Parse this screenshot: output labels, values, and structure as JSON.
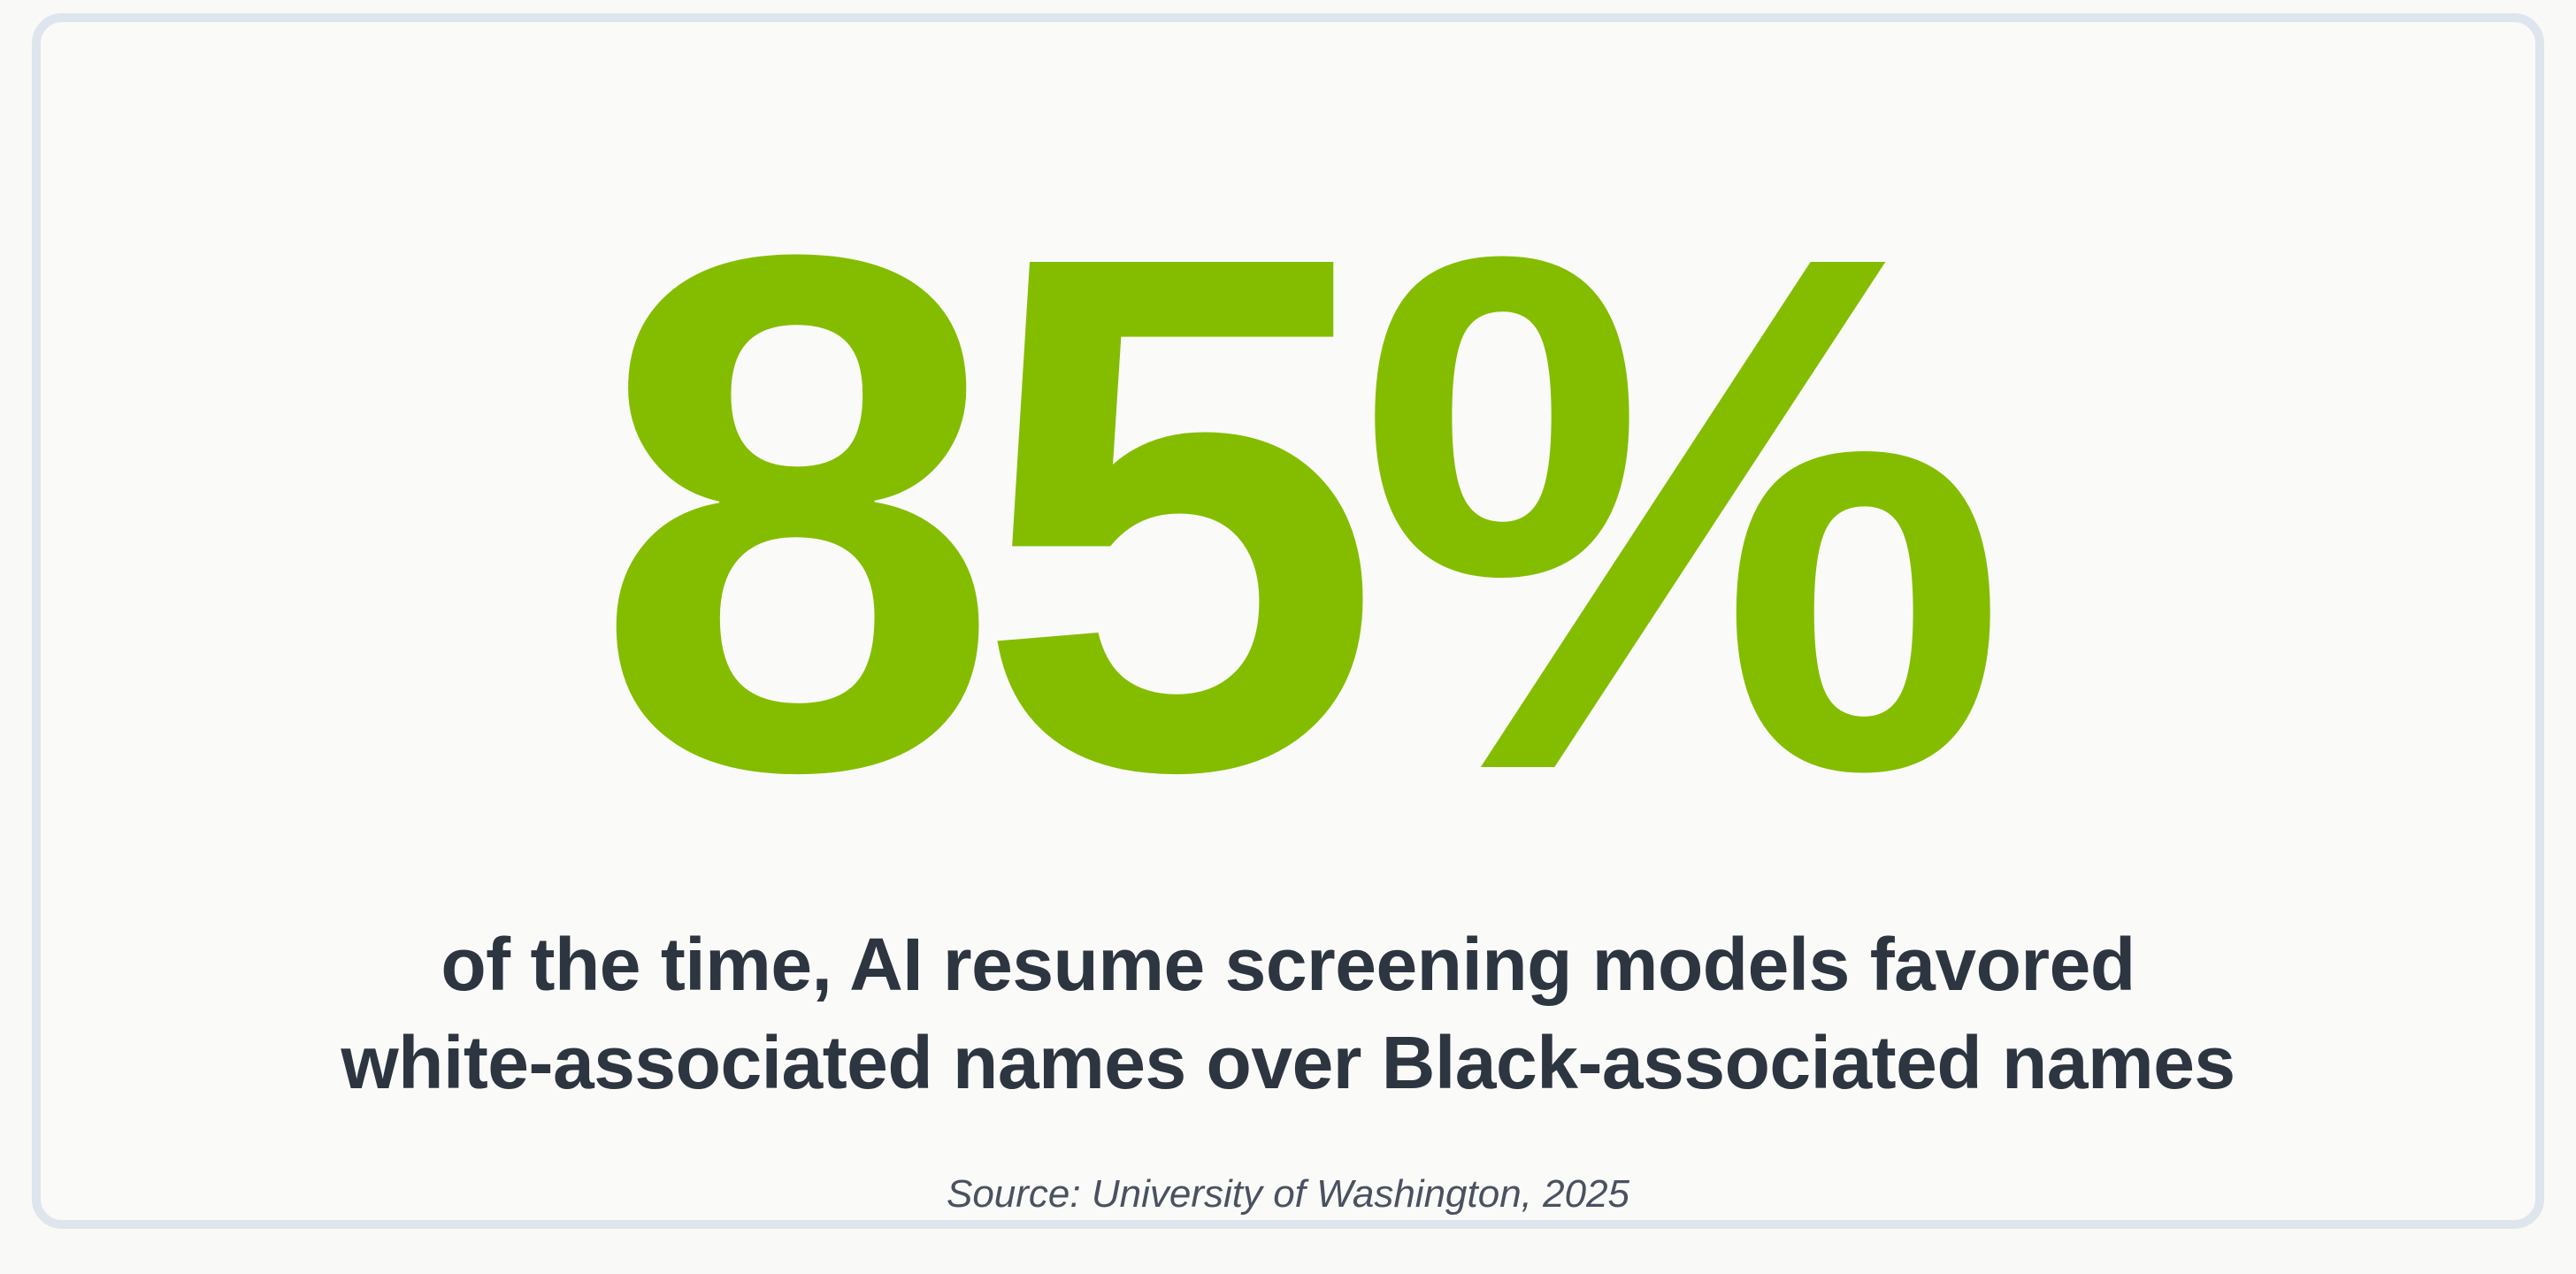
{
  "stat": {
    "value": "85%",
    "color": "#84bd00"
  },
  "description": {
    "line1": "of the time, AI resume screening models favored",
    "line2": "white-associated names over Black-associated names"
  },
  "source": "Source: University of Washington, 2025"
}
